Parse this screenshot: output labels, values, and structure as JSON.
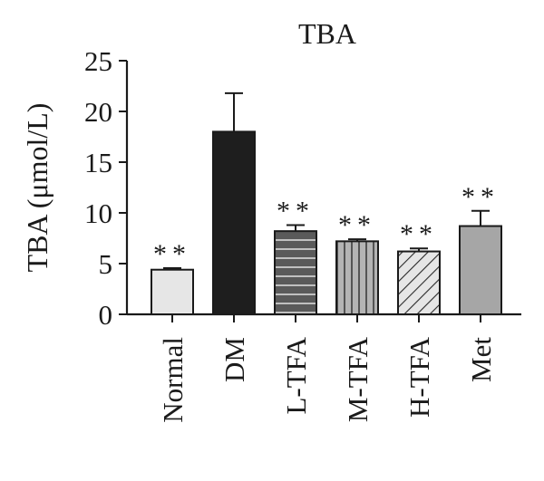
{
  "chart_data": {
    "type": "bar",
    "title": "TBA",
    "ylabel": "TBA (μmol/L)",
    "xlabel": "",
    "ylim": [
      0,
      25
    ],
    "yticks": [
      0,
      5,
      10,
      15,
      20,
      25
    ],
    "grid": false,
    "categories": [
      "Normal",
      "DM",
      "L-TFA",
      "M-TFA",
      "H-TFA",
      "Met"
    ],
    "values": [
      4.4,
      18.0,
      8.2,
      7.2,
      6.2,
      8.7
    ],
    "error": [
      0.15,
      3.8,
      0.6,
      0.2,
      0.3,
      1.5
    ],
    "significance": [
      "**",
      "",
      "**",
      "**",
      "**",
      "**"
    ],
    "styles": [
      {
        "fill": "#e6e6e6",
        "pattern": "none"
      },
      {
        "fill": "#1e1e1e",
        "pattern": "none"
      },
      {
        "fill": "#5a5a5a",
        "pattern": "horizontal-lines"
      },
      {
        "fill": "#b4b4b4",
        "pattern": "vertical-lines"
      },
      {
        "fill": "#e6e6e6",
        "pattern": "diagonal-lines"
      },
      {
        "fill": "#a6a6a6",
        "pattern": "none"
      }
    ]
  }
}
